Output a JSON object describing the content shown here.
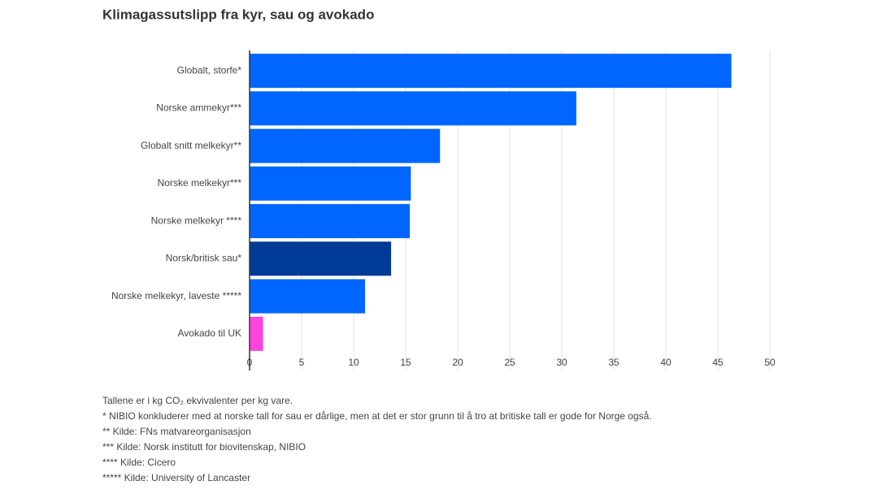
{
  "chart_data": {
    "type": "bar",
    "orientation": "horizontal",
    "title": "Klimagassutslipp fra kyr, sau og avokado",
    "categories": [
      "Globalt, storfe*",
      "Norske ammekyr***",
      "Globalt snitt melkekyr**",
      "Norske melkekyr***",
      "Norske melkekyr ****",
      "Norsk/britisk sau*",
      "Norske melkekyr, laveste *****",
      "Avokado til UK"
    ],
    "values": [
      46.3,
      31.4,
      18.3,
      15.5,
      15.4,
      13.6,
      11.1,
      1.3
    ],
    "colors": [
      "#0066ff",
      "#0066ff",
      "#0066ff",
      "#0066ff",
      "#0066ff",
      "#003a99",
      "#0066ff",
      "#ff44dd"
    ],
    "xlim": [
      0,
      50
    ],
    "xticks": [
      0,
      5,
      10,
      15,
      20,
      25,
      30,
      35,
      40,
      45,
      50
    ],
    "grid": true,
    "footnotes": [
      "Tallene er i kg CO₂ ekvivalenter per kg vare.",
      "* NIBIO konkluderer med at norske tall for sau er dårlige, men at det er stor grunn til å tro at britiske tall er gode for Norge også.",
      "** Kilde: FNs matvareorganisasjon",
      "*** Kilde: Norsk institutt for biovitenskap, NIBIO",
      "**** Kilde: Cicero",
      "***** Kilde: University of Lancaster"
    ]
  }
}
